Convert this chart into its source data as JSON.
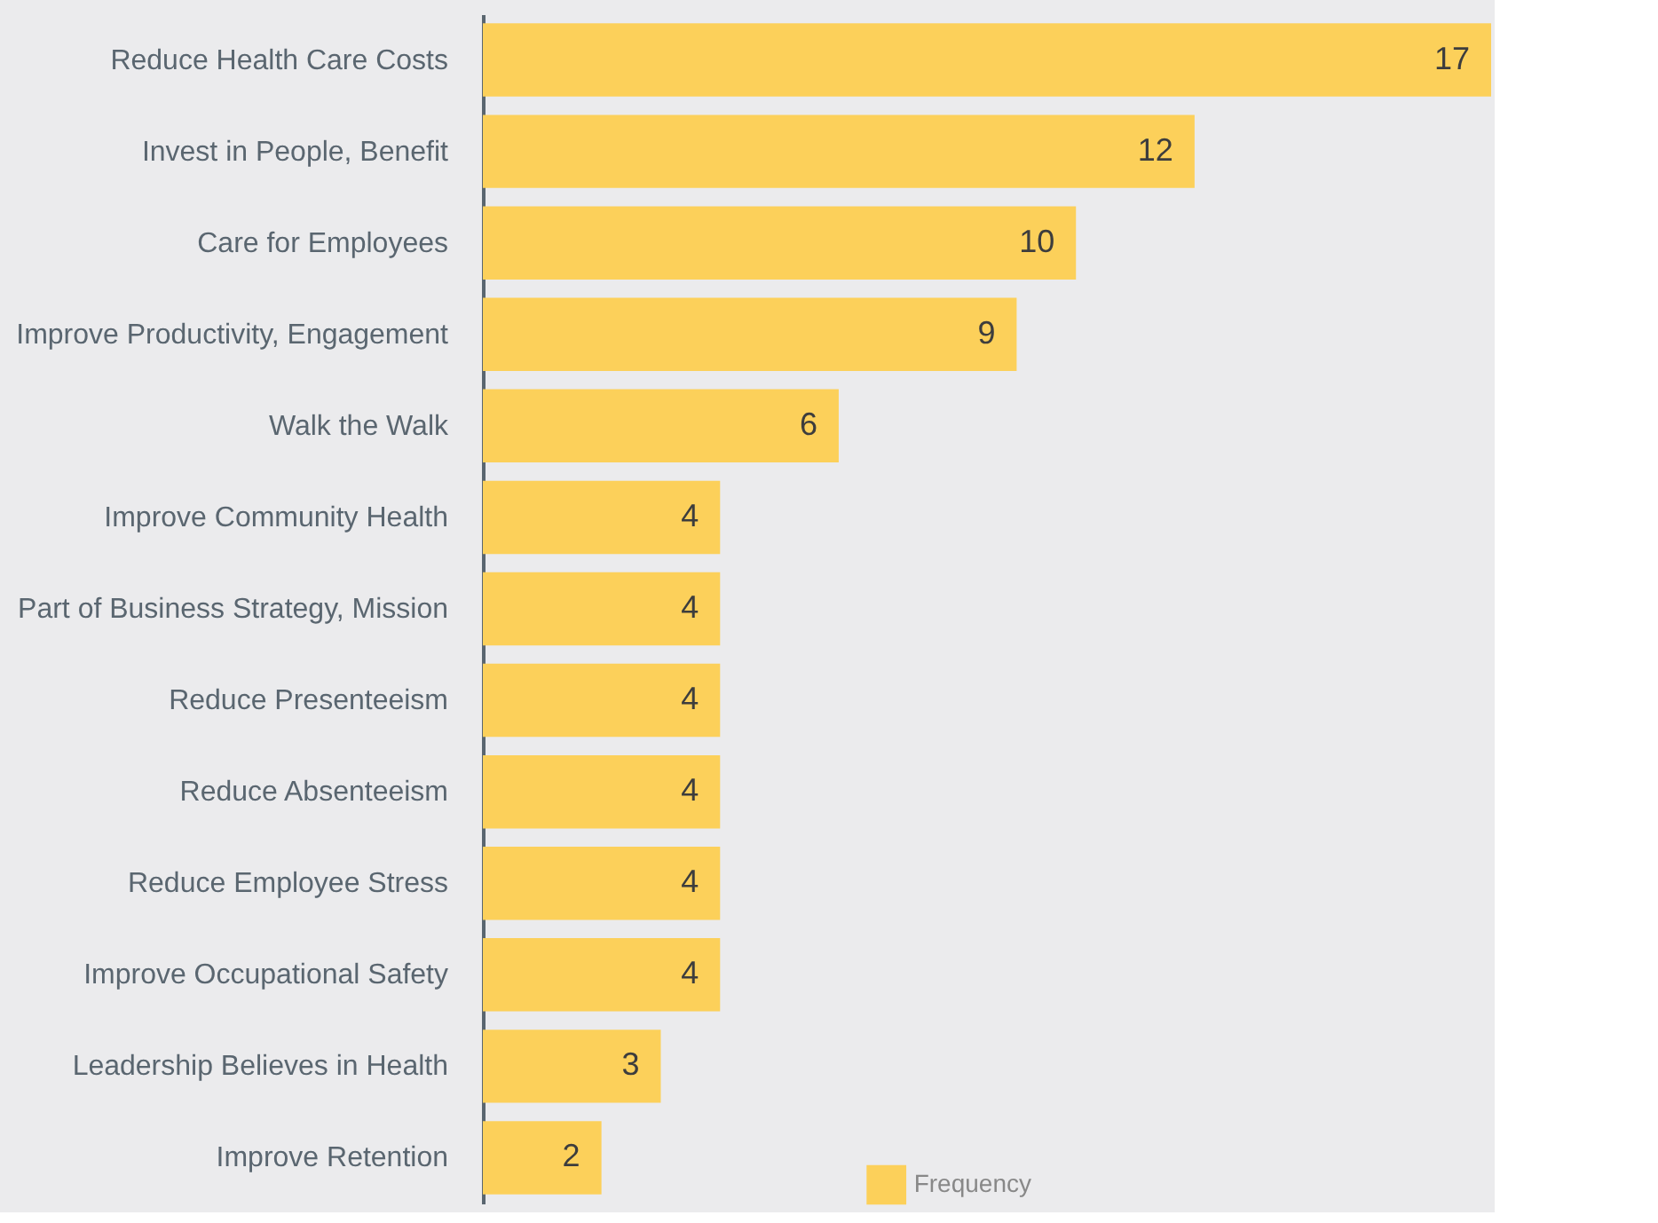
{
  "chart_data": {
    "type": "bar",
    "orientation": "horizontal",
    "categories": [
      "Reduce Health Care Costs",
      "Invest in People, Benefit",
      "Care for Employees",
      "Improve Productivity, Engagement",
      "Walk the Walk",
      "Improve Community Health",
      "Part of Business Strategy, Mission",
      "Reduce Presenteeism",
      "Reduce Absenteeism",
      "Reduce Employee Stress",
      "Improve Occupational Safety",
      "Leadership Believes in Health",
      "Improve Retention"
    ],
    "series": [
      {
        "name": "Frequency",
        "color": "#fcd05a",
        "values": [
          17,
          12,
          10,
          9,
          6,
          4,
          4,
          4,
          4,
          4,
          4,
          3,
          2
        ]
      }
    ],
    "data_labels": true,
    "legend": "bottom",
    "grid": false
  }
}
